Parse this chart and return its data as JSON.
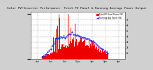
{
  "title": "Solar PV/Inverter Performance  Total PV Panel & Running Average Power Output",
  "title_fontsize": 3.2,
  "bg_color": "#d0d0d0",
  "plot_bg_color": "#ffffff",
  "bar_color": "#ee0000",
  "avg_line_color": "#2222ff",
  "grid_color": "#aaaaaa",
  "xlabel_fontsize": 2.0,
  "ylabel_fontsize": 2.0,
  "legend_fontsize": 2.0,
  "n_points": 200,
  "y_labels": [
    "1k",
    "2k",
    "3k",
    "4k",
    "5k",
    "6k",
    "7k"
  ],
  "x_labels": [
    "3am",
    "6am",
    "9am",
    "12pm",
    "3pm",
    "6pm",
    "9pm"
  ],
  "legend_entries": [
    "Total PV Panel Power (W)",
    "Running Avg Power (W)"
  ]
}
